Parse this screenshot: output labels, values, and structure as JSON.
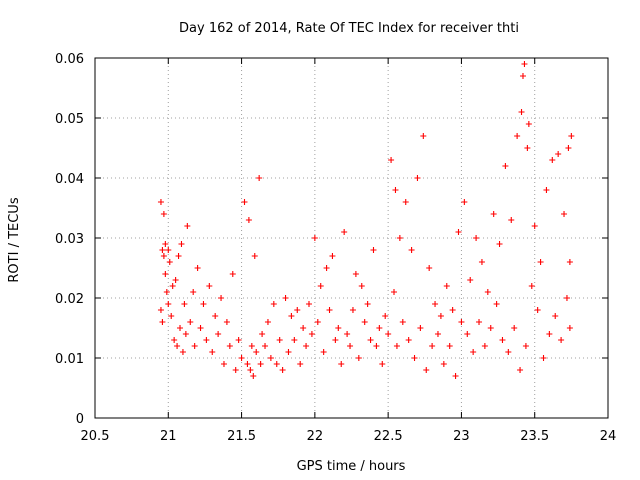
{
  "chart_data": {
    "type": "scatter",
    "title": "Day 162 of 2014, Rate Of TEC Index for receiver thti",
    "xlabel": "GPS time / hours",
    "ylabel": "ROTI / TECUs",
    "xlim": [
      20.5,
      24
    ],
    "ylim": [
      0,
      0.06
    ],
    "x_ticks": [
      20.5,
      21,
      21.5,
      22,
      22.5,
      23,
      23.5,
      24
    ],
    "x_tick_labels": [
      "20.5",
      "21",
      "21.5",
      "22",
      "22.5",
      "23",
      "23.5",
      "24"
    ],
    "y_ticks": [
      0,
      0.01,
      0.02,
      0.03,
      0.04,
      0.05,
      0.06
    ],
    "y_tick_labels": [
      "0",
      "0.01",
      "0.02",
      "0.03",
      "0.04",
      "0.05",
      "0.06"
    ],
    "grid": true,
    "marker": "plus",
    "marker_color": "#ff0000",
    "series": [
      {
        "name": "ROTI",
        "x": [
          20.95,
          20.95,
          20.96,
          20.96,
          20.97,
          20.97,
          20.98,
          20.98,
          20.99,
          21.0,
          21.0,
          21.01,
          21.02,
          21.03,
          21.04,
          21.05,
          21.06,
          21.07,
          21.08,
          21.09,
          21.1,
          21.11,
          21.12,
          21.13,
          21.15,
          21.17,
          21.18,
          21.2,
          21.22,
          21.24,
          21.26,
          21.28,
          21.3,
          21.32,
          21.34,
          21.36,
          21.38,
          21.4,
          21.42,
          21.44,
          21.46,
          21.48,
          21.5,
          21.52,
          21.54,
          21.55,
          21.56,
          21.57,
          21.58,
          21.59,
          21.6,
          21.62,
          21.63,
          21.64,
          21.66,
          21.68,
          21.7,
          21.72,
          21.74,
          21.76,
          21.78,
          21.8,
          21.82,
          21.84,
          21.86,
          21.88,
          21.9,
          21.92,
          21.94,
          21.96,
          21.98,
          22.0,
          22.02,
          22.04,
          22.06,
          22.08,
          22.1,
          22.12,
          22.14,
          22.16,
          22.18,
          22.2,
          22.22,
          22.24,
          22.26,
          22.28,
          22.3,
          22.32,
          22.34,
          22.36,
          22.38,
          22.4,
          22.42,
          22.44,
          22.46,
          22.48,
          22.5,
          22.52,
          22.54,
          22.55,
          22.56,
          22.58,
          22.6,
          22.62,
          22.64,
          22.66,
          22.68,
          22.7,
          22.72,
          22.74,
          22.76,
          22.78,
          22.8,
          22.82,
          22.84,
          22.86,
          22.88,
          22.9,
          22.92,
          22.94,
          22.96,
          22.98,
          23.0,
          23.02,
          23.04,
          23.06,
          23.08,
          23.1,
          23.12,
          23.14,
          23.16,
          23.18,
          23.2,
          23.22,
          23.24,
          23.26,
          23.28,
          23.3,
          23.32,
          23.34,
          23.36,
          23.38,
          23.4,
          23.41,
          23.42,
          23.43,
          23.44,
          23.45,
          23.46,
          23.48,
          23.5,
          23.52,
          23.54,
          23.56,
          23.58,
          23.6,
          23.62,
          23.64,
          23.66,
          23.68,
          23.7,
          23.72,
          23.73,
          23.74,
          23.74,
          23.75
        ],
        "y": [
          0.036,
          0.018,
          0.028,
          0.016,
          0.034,
          0.027,
          0.029,
          0.024,
          0.021,
          0.028,
          0.019,
          0.026,
          0.017,
          0.022,
          0.013,
          0.023,
          0.012,
          0.027,
          0.015,
          0.029,
          0.011,
          0.019,
          0.014,
          0.032,
          0.016,
          0.021,
          0.012,
          0.025,
          0.015,
          0.019,
          0.013,
          0.022,
          0.011,
          0.017,
          0.014,
          0.02,
          0.009,
          0.016,
          0.012,
          0.024,
          0.008,
          0.013,
          0.01,
          0.036,
          0.009,
          0.033,
          0.008,
          0.012,
          0.007,
          0.027,
          0.011,
          0.04,
          0.009,
          0.014,
          0.012,
          0.016,
          0.01,
          0.019,
          0.009,
          0.013,
          0.008,
          0.02,
          0.011,
          0.017,
          0.013,
          0.018,
          0.009,
          0.015,
          0.012,
          0.019,
          0.014,
          0.03,
          0.016,
          0.022,
          0.011,
          0.025,
          0.018,
          0.027,
          0.013,
          0.015,
          0.009,
          0.031,
          0.014,
          0.012,
          0.018,
          0.024,
          0.01,
          0.022,
          0.016,
          0.019,
          0.013,
          0.028,
          0.012,
          0.015,
          0.009,
          0.017,
          0.014,
          0.043,
          0.021,
          0.038,
          0.012,
          0.03,
          0.016,
          0.036,
          0.013,
          0.028,
          0.01,
          0.04,
          0.015,
          0.047,
          0.008,
          0.025,
          0.012,
          0.019,
          0.014,
          0.017,
          0.009,
          0.022,
          0.012,
          0.018,
          0.007,
          0.031,
          0.016,
          0.036,
          0.014,
          0.023,
          0.011,
          0.03,
          0.016,
          0.026,
          0.012,
          0.021,
          0.015,
          0.034,
          0.019,
          0.029,
          0.013,
          0.042,
          0.011,
          0.033,
          0.015,
          0.047,
          0.008,
          0.051,
          0.057,
          0.059,
          0.012,
          0.045,
          0.049,
          0.022,
          0.032,
          0.018,
          0.026,
          0.01,
          0.038,
          0.014,
          0.043,
          0.017,
          0.044,
          0.013,
          0.034,
          0.02,
          0.045,
          0.026,
          0.015,
          0.047
        ]
      }
    ]
  }
}
